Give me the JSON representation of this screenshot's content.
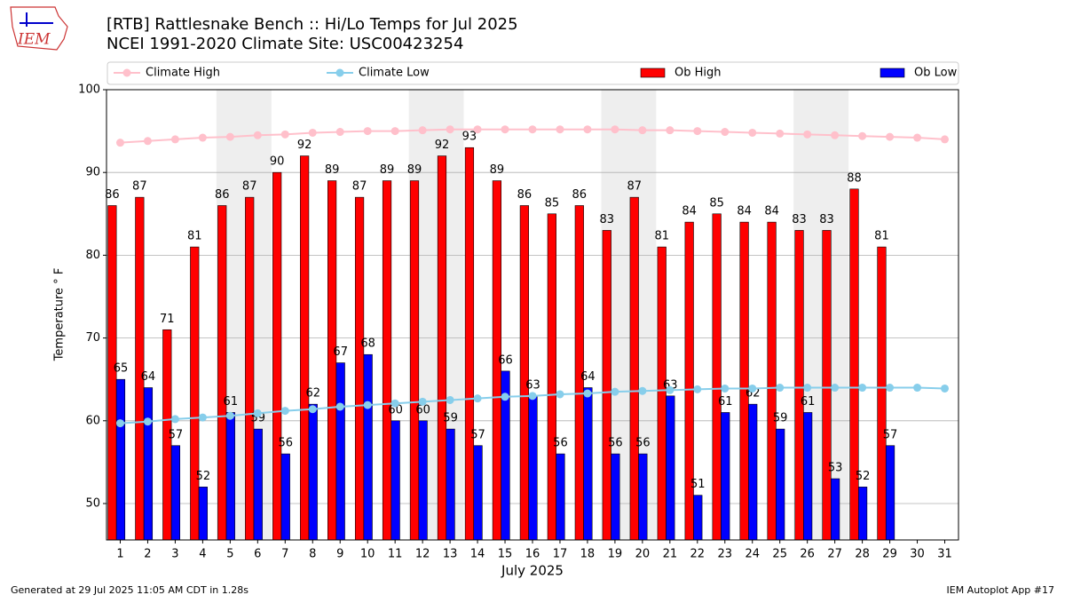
{
  "logo": "IEM",
  "chart_data": {
    "type": "bar",
    "title": "[RTB] Rattlesnake Bench  :: Hi/Lo Temps for Jul 2025",
    "subtitle": "NCEI 1991-2020 Climate Site: USC00423254",
    "xlabel": "July 2025",
    "ylabel": "Temperature ° F",
    "footer_left": "Generated at 29 Jul 2025 11:05 AM CDT in 1.28s",
    "footer_right": "IEM Autoplot App #17",
    "x": [
      1,
      2,
      3,
      4,
      5,
      6,
      7,
      8,
      9,
      10,
      11,
      12,
      13,
      14,
      15,
      16,
      17,
      18,
      19,
      20,
      21,
      22,
      23,
      24,
      25,
      26,
      27,
      28,
      29,
      30,
      31
    ],
    "xlim": [
      0.5,
      31.5
    ],
    "xticks": [
      1,
      2,
      3,
      4,
      5,
      6,
      7,
      8,
      9,
      10,
      11,
      12,
      13,
      14,
      15,
      16,
      17,
      18,
      19,
      20,
      21,
      22,
      23,
      24,
      25,
      26,
      27,
      28,
      29,
      30,
      31
    ],
    "ylim": [
      45.6,
      100
    ],
    "yticks": [
      50,
      60,
      70,
      80,
      90,
      100
    ],
    "grid": true,
    "shaded_spans": [
      [
        4.5,
        6.5
      ],
      [
        11.5,
        13.5
      ],
      [
        18.5,
        20.5
      ],
      [
        25.5,
        27.5
      ]
    ],
    "series": [
      {
        "name": "Climate High",
        "kind": "line",
        "color": "#ffc0cb",
        "values": [
          93.6,
          93.8,
          94.0,
          94.2,
          94.3,
          94.5,
          94.6,
          94.8,
          94.9,
          95.0,
          95.0,
          95.1,
          95.2,
          95.2,
          95.2,
          95.2,
          95.2,
          95.2,
          95.2,
          95.1,
          95.1,
          95.0,
          94.9,
          94.8,
          94.7,
          94.6,
          94.5,
          94.4,
          94.3,
          94.2,
          94.0
        ]
      },
      {
        "name": "Climate Low",
        "kind": "line",
        "color": "#87ceeb",
        "values": [
          59.7,
          59.9,
          60.2,
          60.4,
          60.6,
          60.9,
          61.2,
          61.4,
          61.7,
          61.9,
          62.1,
          62.3,
          62.5,
          62.7,
          62.9,
          63.0,
          63.2,
          63.3,
          63.5,
          63.6,
          63.7,
          63.8,
          63.9,
          63.9,
          64.0,
          64.0,
          64.0,
          64.0,
          64.0,
          64.0,
          63.9
        ]
      },
      {
        "name": "Ob High",
        "kind": "bar",
        "color": "#ff0000",
        "values": [
          86,
          87,
          71,
          81,
          86,
          87,
          90,
          92,
          89,
          87,
          89,
          89,
          92,
          93,
          89,
          86,
          85,
          86,
          83,
          87,
          81,
          84,
          85,
          84,
          84,
          83,
          83,
          88,
          81,
          null,
          null
        ]
      },
      {
        "name": "Ob Low",
        "kind": "bar",
        "color": "#0000ff",
        "values": [
          65,
          64,
          57,
          52,
          61,
          59,
          56,
          62,
          67,
          68,
          60,
          60,
          59,
          57,
          66,
          63,
          56,
          64,
          56,
          56,
          63,
          51,
          61,
          62,
          59,
          61,
          53,
          52,
          57,
          null,
          null
        ]
      }
    ]
  }
}
